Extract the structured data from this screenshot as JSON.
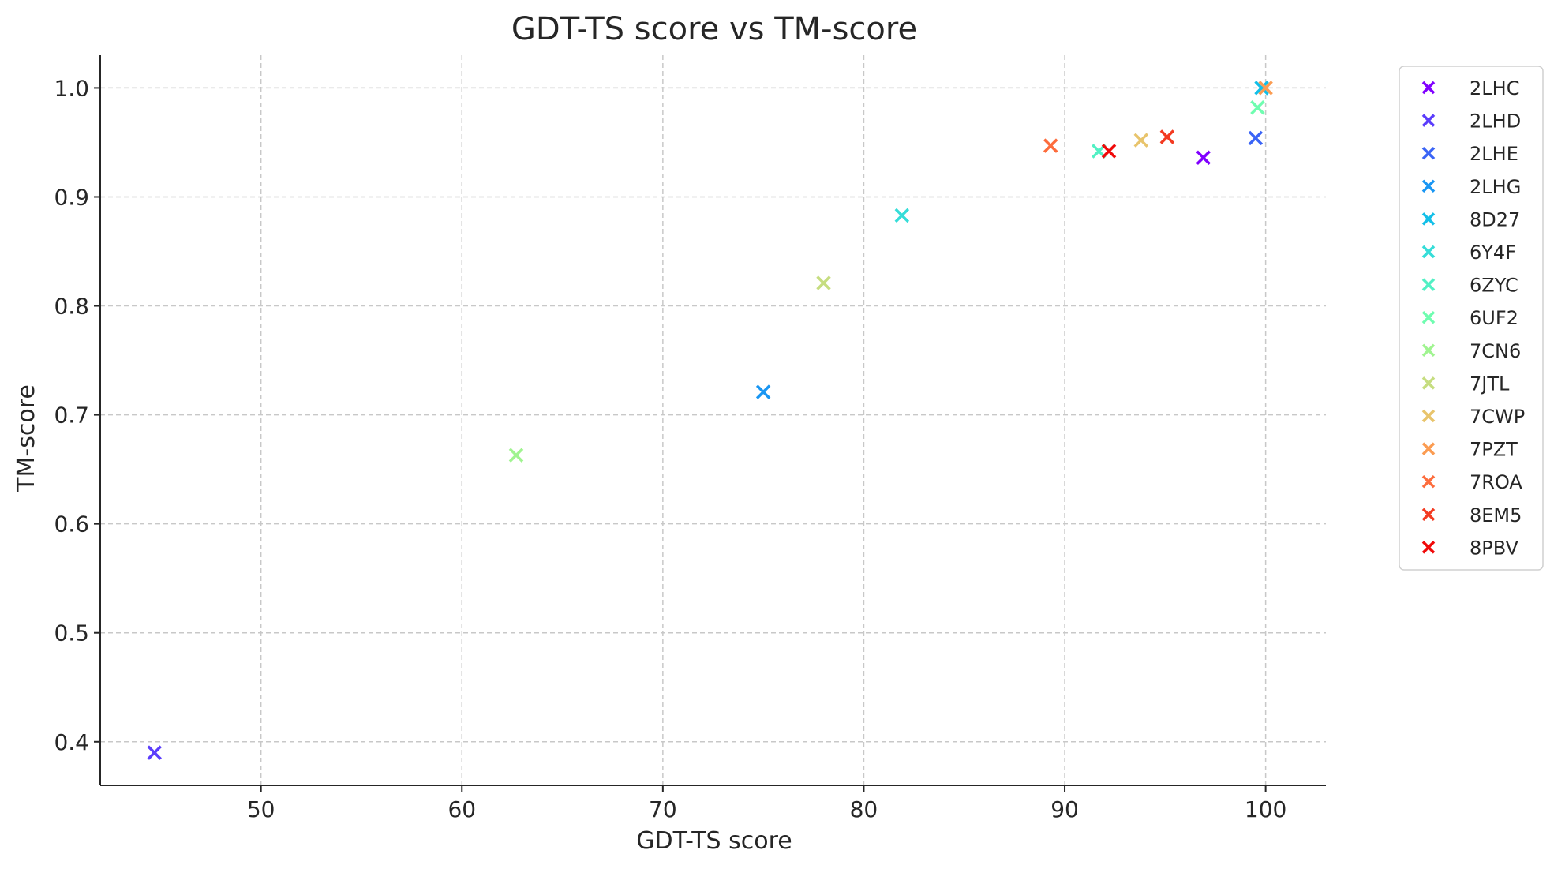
{
  "chart_data": {
    "type": "scatter",
    "title": "GDT-TS score vs TM-score",
    "xlabel": "GDT-TS score",
    "ylabel": "TM-score",
    "xlim": [
      42,
      103
    ],
    "ylim": [
      0.36,
      1.03
    ],
    "xticks": [
      50,
      60,
      70,
      80,
      90,
      100
    ],
    "yticks": [
      0.4,
      0.5,
      0.6,
      0.7,
      0.8,
      0.9,
      1.0
    ],
    "xtick_labels": [
      "50",
      "60",
      "70",
      "80",
      "90",
      "100"
    ],
    "ytick_labels": [
      "0.4",
      "0.5",
      "0.6",
      "0.7",
      "0.8",
      "0.9",
      "1.0"
    ],
    "grid": true,
    "legend_position": "outside-right-top",
    "marker": "x",
    "series": [
      {
        "name": "2LHC",
        "color": "#8000ff",
        "points": [
          [
            96.9,
            0.936
          ]
        ]
      },
      {
        "name": "2LHD",
        "color": "#5b3dfc",
        "points": [
          [
            44.7,
            0.39
          ]
        ]
      },
      {
        "name": "2LHE",
        "color": "#3a64f6",
        "points": [
          [
            99.5,
            0.954
          ]
        ]
      },
      {
        "name": "2LHG",
        "color": "#1996f3",
        "points": [
          [
            75.0,
            0.721
          ]
        ]
      },
      {
        "name": "8D27",
        "color": "#12bfe8",
        "points": [
          [
            99.8,
            1.0
          ]
        ]
      },
      {
        "name": "6Y4F",
        "color": "#35ddd8",
        "points": [
          [
            81.9,
            0.883
          ]
        ]
      },
      {
        "name": "6ZYC",
        "color": "#52f0c4",
        "points": [
          [
            91.7,
            0.942
          ]
        ]
      },
      {
        "name": "6UF2",
        "color": "#6ffdb0",
        "points": [
          [
            99.6,
            0.982
          ]
        ]
      },
      {
        "name": "7CN6",
        "color": "#a0f490",
        "points": [
          [
            62.7,
            0.663
          ]
        ]
      },
      {
        "name": "7JTL",
        "color": "#c6dd80",
        "points": [
          [
            78.0,
            0.821
          ]
        ]
      },
      {
        "name": "7CWP",
        "color": "#e8c46c",
        "points": [
          [
            93.8,
            0.952
          ]
        ]
      },
      {
        "name": "7PZT",
        "color": "#fb9c52",
        "points": [
          [
            100.0,
            1.0
          ]
        ]
      },
      {
        "name": "7ROA",
        "color": "#fd6c3c",
        "points": [
          [
            89.3,
            0.947
          ]
        ]
      },
      {
        "name": "8EM5",
        "color": "#f33a21",
        "points": [
          [
            95.1,
            0.955
          ]
        ]
      },
      {
        "name": "8PBV",
        "color": "#f00a0a",
        "points": [
          [
            92.2,
            0.942
          ]
        ]
      }
    ]
  }
}
